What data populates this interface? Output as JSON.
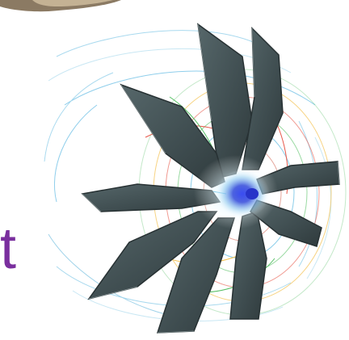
{
  "visible_text": {
    "left_edge_fragment": "t"
  },
  "colors": {
    "text_purple": "#7a2f9e",
    "blade_fill": "#3e4c4f",
    "blade_edge": "#273133",
    "hub_glow": "#2b3fd8",
    "streamline_palette": [
      "#e23a2a",
      "#f2b632",
      "#39b54a",
      "#1e9fd6",
      "#7cc6e8",
      "#c7432e"
    ]
  },
  "figure": {
    "subject": "fan-impeller-cfd-streamlines",
    "blade_count": 9
  }
}
